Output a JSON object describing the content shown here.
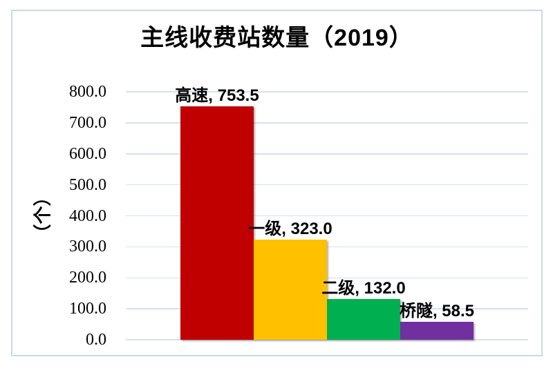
{
  "chart_data": {
    "type": "bar",
    "title": "主线收费站数量（2019）",
    "ylabel": "（个）",
    "xlabel": "",
    "categories": [
      "高速",
      "一级",
      "二级",
      "桥隧"
    ],
    "values": [
      753.5,
      323.0,
      132.0,
      58.5
    ],
    "data_labels": [
      "高速, 753.5",
      "一级, 323.0",
      "二级, 132.0",
      "桥隧, 58.5"
    ],
    "bar_colors": [
      "#C00000",
      "#FFC000",
      "#00B050",
      "#7030A0"
    ],
    "ylim": [
      0,
      800
    ],
    "ytick_interval": 100,
    "ytick_labels": [
      "800.0",
      "700.0",
      "600.0",
      "500.0",
      "400.0",
      "300.0",
      "200.0",
      "100.0",
      "0.0"
    ],
    "grid": "horizontal-only",
    "legend": "none",
    "colors": {
      "gridline": "#D3E0F0",
      "frame_border": "#C7D9EC",
      "title_text": "#000000"
    }
  }
}
